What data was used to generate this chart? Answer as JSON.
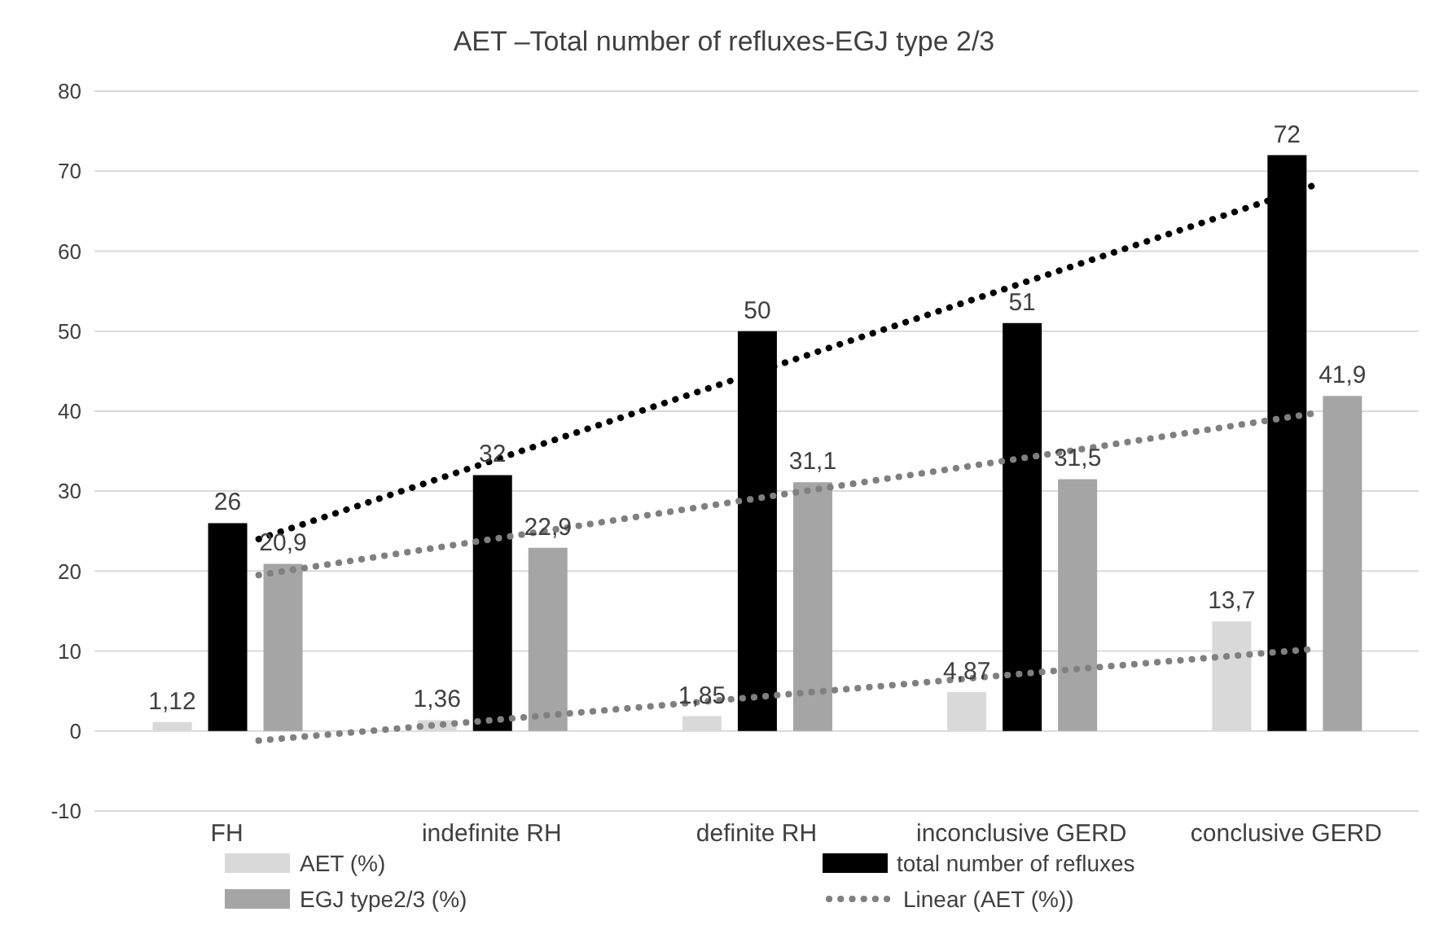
{
  "chart_data": {
    "type": "bar",
    "title": "AET –Total  number of refluxes-EGJ type 2/3",
    "categories": [
      "FH",
      "indefinite RH",
      "definite RH",
      "inconclusive GERD",
      "conclusive GERD"
    ],
    "series": [
      {
        "name": "AET (%)",
        "type": "bar",
        "color": "#d9d9d9",
        "values": [
          1.12,
          1.36,
          1.85,
          4.87,
          13.7
        ],
        "value_labels": [
          "1,12",
          "1,36",
          "1,85",
          "4,87",
          "13,7"
        ]
      },
      {
        "name": "total number of refluxes",
        "type": "bar",
        "color": "#000000",
        "values": [
          26,
          32,
          50,
          51,
          72
        ],
        "value_labels": [
          "26",
          "32",
          "50",
          "51",
          "72"
        ]
      },
      {
        "name": "EGJ type2/3 (%)",
        "color": "#a5a5a5",
        "values": [
          20.9,
          22.9,
          31.1,
          31.5,
          41.9
        ],
        "value_labels": [
          "20,9",
          "22,9",
          "31,1",
          "31,5",
          "41,9"
        ]
      },
      {
        "name": "Linear (AET (%))",
        "type": "line",
        "color": "#808080",
        "line_style": "dotted",
        "values": [
          -1.2,
          1.7,
          4.6,
          7.5,
          10.3
        ]
      },
      {
        "type": "line",
        "color": "#000000",
        "line_style": "dotted",
        "values": [
          24,
          35.1,
          46.2,
          57.3,
          68.4
        ]
      },
      {
        "type": "line",
        "color": "#7f7f7f",
        "line_style": "dotted",
        "values": [
          19.5,
          24.6,
          29.7,
          34.7,
          39.8
        ]
      }
    ],
    "ylim": [
      -10,
      80
    ],
    "yticks": [
      -10,
      0,
      10,
      20,
      30,
      40,
      50,
      60,
      70,
      80
    ],
    "grid": "y",
    "legend": "bottom",
    "marker": "none"
  }
}
